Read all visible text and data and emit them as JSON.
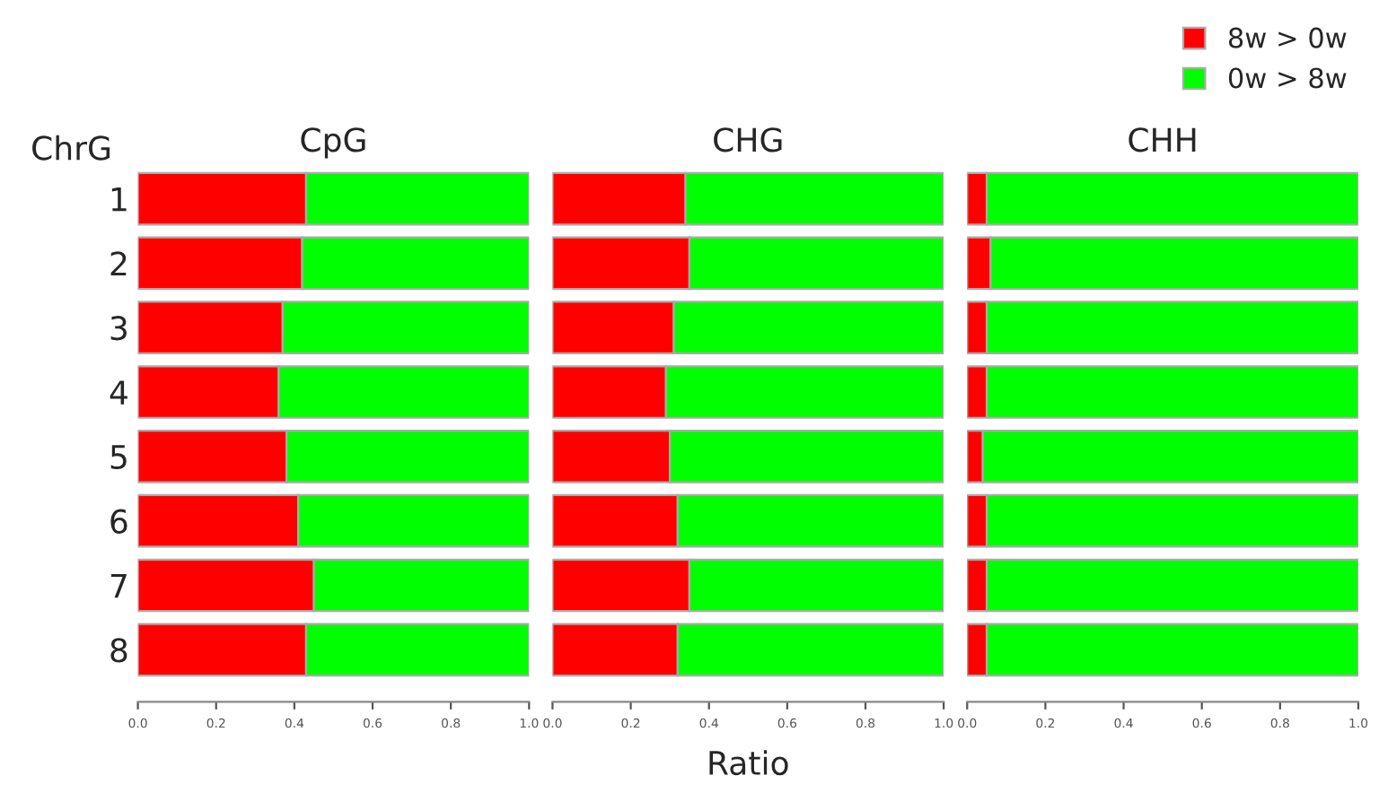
{
  "chart_data": [
    {
      "type": "bar",
      "orientation": "horizontal",
      "stacked": true,
      "title": "CpG",
      "ylabel": "ChrG",
      "categories": [
        "1",
        "2",
        "3",
        "4",
        "5",
        "6",
        "7",
        "8"
      ],
      "series": [
        {
          "color": "#ff0000",
          "values": [
            0.43,
            0.42,
            0.37,
            0.36,
            0.38,
            0.41,
            0.45,
            0.43
          ]
        },
        {
          "color": "#00ff00",
          "values": [
            0.57,
            0.58,
            0.63,
            0.64,
            0.62,
            0.59,
            0.55,
            0.57
          ]
        }
      ],
      "xlim": [
        0,
        1
      ],
      "xticks": [
        {
          "value": 0,
          "label": "0.0"
        },
        {
          "value": 0.2,
          "label": "0.2"
        },
        {
          "value": 0.4,
          "label": "0.4"
        },
        {
          "value": 0.6,
          "label": "0.6"
        },
        {
          "value": 0.8,
          "label": "0.8"
        },
        {
          "value": 1,
          "label": "1.0"
        }
      ],
      "grid": false,
      "legend": false
    },
    {
      "type": "bar",
      "orientation": "horizontal",
      "stacked": true,
      "title": "CHG",
      "xlabel": "Ratio",
      "categories": [
        "1",
        "2",
        "3",
        "4",
        "5",
        "6",
        "7",
        "8"
      ],
      "series": [
        {
          "color": "#ff0000",
          "values": [
            0.34,
            0.35,
            0.31,
            0.29,
            0.3,
            0.32,
            0.35,
            0.32
          ]
        },
        {
          "color": "#00ff00",
          "values": [
            0.66,
            0.65,
            0.69,
            0.71,
            0.7,
            0.68,
            0.65,
            0.68
          ]
        }
      ],
      "xlim": [
        0,
        1
      ],
      "xticks": [
        {
          "value": 0,
          "label": "0.0"
        },
        {
          "value": 0.2,
          "label": "0.2"
        },
        {
          "value": 0.4,
          "label": "0.4"
        },
        {
          "value": 0.6,
          "label": "0.6"
        },
        {
          "value": 0.8,
          "label": "0.8"
        },
        {
          "value": 1,
          "label": "1.0"
        }
      ],
      "grid": false,
      "legend": false,
      "tick_labels": "x"
    },
    {
      "type": "bar",
      "orientation": "horizontal",
      "stacked": true,
      "title": "CHH",
      "categories": [
        "1",
        "2",
        "3",
        "4",
        "5",
        "6",
        "7",
        "8"
      ],
      "series": [
        {
          "name": "8w > 0w",
          "color": "#ff0000",
          "values": [
            0.05,
            0.06,
            0.05,
            0.05,
            0.04,
            0.05,
            0.05,
            0.05
          ]
        },
        {
          "name": "0w > 8w",
          "color": "#00ff00",
          "values": [
            0.95,
            0.94,
            0.95,
            0.95,
            0.96,
            0.95,
            0.95,
            0.95
          ]
        }
      ],
      "xlim": [
        0,
        1
      ],
      "xticks": [
        {
          "value": 0,
          "label": "0.0"
        },
        {
          "value": 0.2,
          "label": "0.2"
        },
        {
          "value": 0.4,
          "label": "0.4"
        },
        {
          "value": 0.6,
          "label": "0.6"
        },
        {
          "value": 0.8,
          "label": "0.8"
        },
        {
          "value": 1,
          "label": "1.0"
        }
      ],
      "grid": false,
      "legend": "top right",
      "tick_labels": "x"
    }
  ]
}
